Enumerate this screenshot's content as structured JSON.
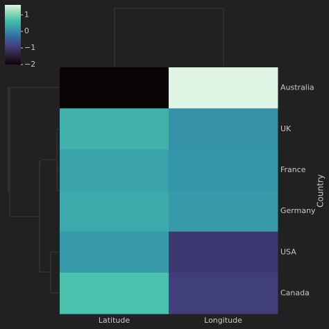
{
  "chart_data": {
    "type": "heatmap",
    "ylabel": "Country",
    "rows": [
      "Australia",
      "UK",
      "France",
      "Germany",
      "USA",
      "Canada"
    ],
    "columns": [
      "Latitude",
      "Longitude"
    ],
    "values": [
      [
        -2.0,
        1.6
      ],
      [
        0.5,
        0.1
      ],
      [
        0.3,
        0.15
      ],
      [
        0.4,
        0.2
      ],
      [
        0.2,
        -1.0
      ],
      [
        0.7,
        -0.9
      ]
    ],
    "colormap": "mako",
    "clim": [
      -2,
      1.6
    ],
    "cticks": [
      {
        "value": -2,
        "label": "−2"
      },
      {
        "value": -1,
        "label": "−1"
      },
      0,
      1
    ]
  }
}
